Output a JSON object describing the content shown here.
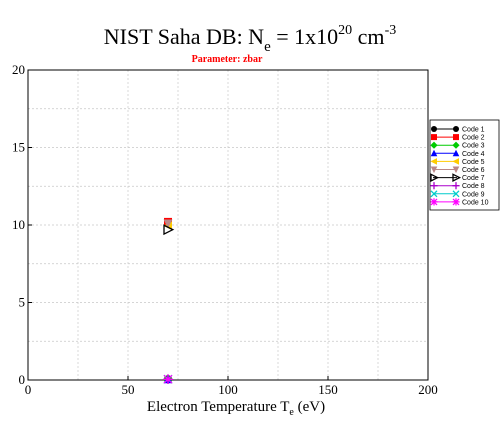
{
  "chart_data": {
    "type": "scatter",
    "title": {
      "prefix": "NIST Saha DB: N",
      "sub": "e",
      "mid": " =  1x10",
      "sup": "20",
      "unit": " cm",
      "unit_sup": "-3"
    },
    "subtitle": "Parameter: zbar",
    "xlabel": {
      "main": "Electron Temperature T",
      "sub": "e",
      "unit": " (eV)"
    },
    "ylabel": "",
    "xlim": [
      0,
      200
    ],
    "ylim": [
      0,
      20
    ],
    "x_ticks": [
      0,
      50,
      100,
      150,
      200
    ],
    "y_ticks": [
      0,
      5,
      10,
      15,
      20
    ],
    "x_tick_labels": [
      "0",
      "50",
      "100",
      "150",
      "200"
    ],
    "y_tick_labels": [
      "0",
      "5",
      "10",
      "15",
      "20"
    ],
    "grid": true,
    "legend_position": "right",
    "series": [
      {
        "name": "Code 1",
        "color": "#000000",
        "marker": "circle",
        "points": [
          [
            70,
            0.05
          ]
        ]
      },
      {
        "name": "Code 2",
        "color": "#ff0000",
        "marker": "square",
        "points": [
          [
            70,
            10.2
          ]
        ]
      },
      {
        "name": "Code 3",
        "color": "#00cc00",
        "marker": "diamond",
        "points": [
          [
            70,
            0.05
          ]
        ]
      },
      {
        "name": "Code 4",
        "color": "#0000ff",
        "marker": "triangle-up",
        "points": [
          [
            70,
            0.05
          ]
        ]
      },
      {
        "name": "Code 5",
        "color": "#ffcc00",
        "marker": "triangle-left",
        "points": [
          [
            70,
            9.95
          ]
        ]
      },
      {
        "name": "Code 6",
        "color": "#bb8888",
        "marker": "triangle-down",
        "points": [
          [
            70,
            10.1
          ]
        ]
      },
      {
        "name": "Code 7",
        "color": "#000000",
        "marker": "triangle-right-open",
        "points": [
          [
            70,
            9.7
          ]
        ]
      },
      {
        "name": "Code 8",
        "color": "#aa00cc",
        "marker": "plus",
        "points": [
          [
            70,
            0.05
          ]
        ]
      },
      {
        "name": "Code 9",
        "color": "#00cccc",
        "marker": "x",
        "points": [
          [
            70,
            0.05
          ]
        ]
      },
      {
        "name": "Code 10",
        "color": "#ff00ff",
        "marker": "asterisk",
        "points": [
          [
            70,
            0.05
          ]
        ]
      }
    ]
  }
}
